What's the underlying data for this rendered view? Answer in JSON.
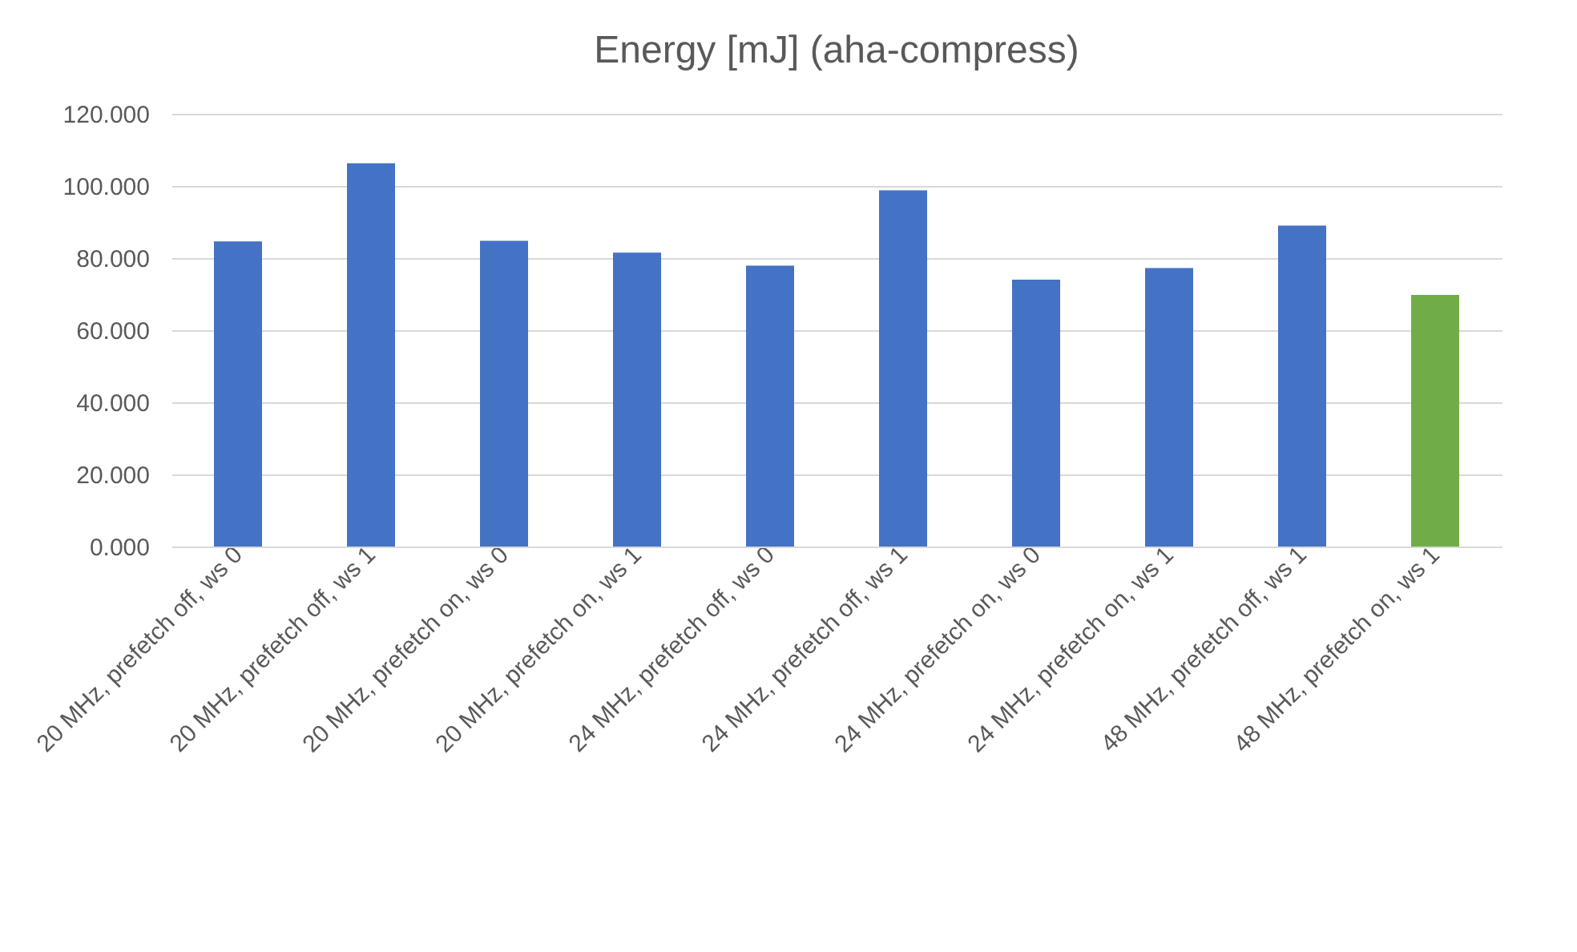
{
  "chart_data": {
    "type": "bar",
    "title": "Energy [mJ] (aha-compress)",
    "categories": [
      "20 MHz, prefetch off, ws 0",
      "20 MHz, prefetch off, ws 1",
      "20 MHz, prefetch on, ws 0",
      "20 MHz, prefetch on, ws 1",
      "24 MHz, prefetch off, ws 0",
      "24 MHz, prefetch off, ws 1",
      "24 MHz, prefetch on, ws 0",
      "24 MHz, prefetch on, ws 1",
      "48 MHz, prefetch off, ws 1",
      "48 MHz, prefetch on, ws 1"
    ],
    "values": [
      84.6,
      106.3,
      84.8,
      81.5,
      77.9,
      98.8,
      74.0,
      77.2,
      89.0,
      69.8
    ],
    "colors": [
      "#4472c4",
      "#4472c4",
      "#4472c4",
      "#4472c4",
      "#4472c4",
      "#4472c4",
      "#4472c4",
      "#4472c4",
      "#4472c4",
      "#70ad47"
    ],
    "ylim": [
      0,
      120
    ],
    "yticks": [
      {
        "value": 0,
        "label": "0.000"
      },
      {
        "value": 20,
        "label": "20.000"
      },
      {
        "value": 40,
        "label": "40.000"
      },
      {
        "value": 60,
        "label": "60.000"
      },
      {
        "value": 80,
        "label": "80.000"
      },
      {
        "value": 100,
        "label": "100.000"
      },
      {
        "value": 120,
        "label": "120.000"
      }
    ],
    "grid": "y"
  }
}
